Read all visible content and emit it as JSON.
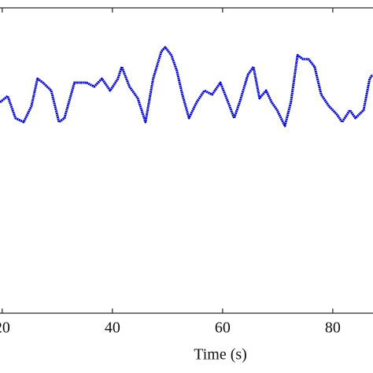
{
  "chart_data": {
    "type": "line",
    "x_label": "Time (s)",
    "x": [
      19.6,
      21.0,
      22.4,
      23.9,
      25.3,
      26.4,
      27.4,
      28.9,
      30.3,
      31.3,
      33.1,
      35.3,
      36.7,
      38.1,
      39.6,
      41.0,
      41.7,
      43.1,
      44.6,
      46.0,
      47.4,
      48.9,
      49.6,
      50.7,
      51.7,
      52.7,
      53.9,
      55.3,
      56.7,
      58.1,
      59.6,
      61.0,
      62.1,
      63.1,
      64.6,
      65.6,
      66.7,
      67.9,
      68.9,
      69.9,
      71.3,
      72.4,
      73.6,
      74.6,
      75.6,
      76.7,
      77.9,
      79.3,
      80.7,
      81.7,
      83.1,
      84.1,
      85.6,
      86.7,
      87.2
    ],
    "series": [
      {
        "color": "#0000cc",
        "values": [
          69.1,
          71.1,
          63.9,
          62.6,
          67.8,
          76.8,
          75.5,
          72.9,
          62.6,
          63.9,
          75.5,
          75.5,
          74.2,
          76.8,
          72.9,
          76.8,
          80.7,
          74.2,
          70.4,
          62.6,
          76.8,
          85.8,
          87.1,
          84.5,
          79.4,
          71.6,
          63.9,
          69.1,
          72.9,
          71.6,
          75.5,
          69.1,
          63.9,
          69.1,
          78.1,
          80.7,
          70.4,
          72.9,
          69.1,
          66.5,
          61.3,
          69.1,
          84.5,
          83.2,
          83.2,
          80.7,
          71.6,
          67.8,
          65.2,
          62.6,
          66.5,
          63.9,
          66.5,
          76.8,
          78.1
        ]
      }
    ],
    "xlim": [
      19.6,
      87.3
    ],
    "xticks": [
      20,
      40,
      60,
      80
    ],
    "ylim": [
      0,
      100
    ]
  }
}
